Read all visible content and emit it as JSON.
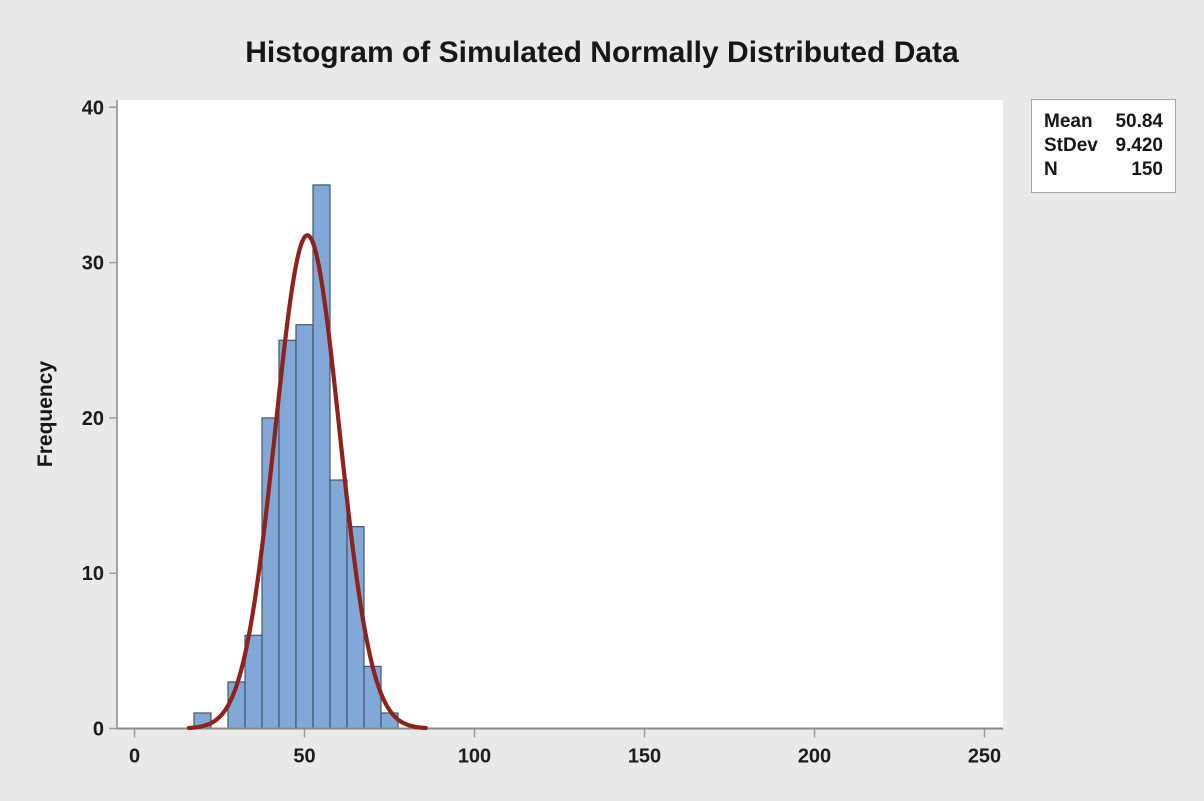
{
  "chart_data": {
    "type": "bar",
    "variant": "histogram-with-normal-fit",
    "title": "Histogram of Simulated Normally Distributed Data",
    "xlabel": "",
    "ylabel": "Frequency",
    "bin_width": 5,
    "bin_centers": [
      20,
      25,
      30,
      35,
      40,
      45,
      50,
      55,
      60,
      65,
      70,
      75
    ],
    "frequencies": [
      1,
      0,
      3,
      6,
      20,
      25,
      26,
      35,
      16,
      13,
      4,
      1
    ],
    "x_ticks": [
      0,
      50,
      100,
      150,
      200,
      250
    ],
    "y_ticks": [
      0,
      10,
      20,
      30,
      40
    ],
    "xlim": [
      -5,
      255
    ],
    "ylim": [
      0,
      40.5
    ],
    "grid": false,
    "legend_position": "top-right",
    "curve": {
      "distribution": "normal",
      "mean": 50.84,
      "stdev": 9.42,
      "n": 150,
      "span_sigmas": 3.7
    },
    "colors": {
      "bar_fill": "#82a8d8",
      "bar_stroke": "#44566b",
      "curve": "#8e221c",
      "plot_bg": "#ffffff",
      "figure_bg": "#e9e9e7",
      "axis": "#8a8a8a",
      "tick": "#9a9a9a",
      "text": "#171717",
      "legend_border": "#a6a6a6",
      "legend_bg": "#ffffff"
    }
  },
  "legend": {
    "rows": [
      {
        "label": "Mean",
        "value": "50.84"
      },
      {
        "label": "StDev",
        "value": "9.420"
      },
      {
        "label": "N",
        "value": "150"
      }
    ]
  }
}
